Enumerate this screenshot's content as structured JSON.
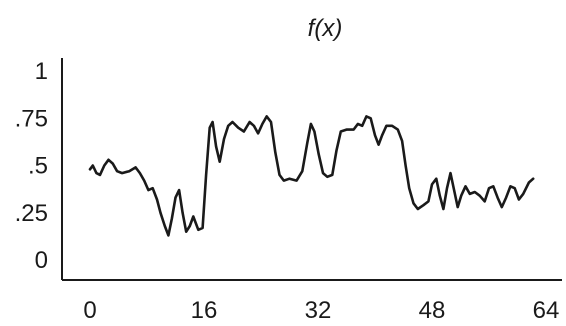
{
  "chart_data": {
    "type": "line",
    "title": "f(x)",
    "xlabel": "",
    "ylabel": "",
    "xlim": [
      -5,
      65
    ],
    "ylim": [
      0,
      1
    ],
    "grid": false,
    "legend": "none",
    "x_ticks": [
      {
        "value": 0,
        "label": "0"
      },
      {
        "value": 16,
        "label": "16"
      },
      {
        "value": 32,
        "label": "32"
      },
      {
        "value": 48,
        "label": "48"
      },
      {
        "value": 64,
        "label": "64"
      }
    ],
    "y_ticks": [
      {
        "value": 0,
        "label": "0"
      },
      {
        "value": 0.25,
        "label": ".25"
      },
      {
        "value": 0.5,
        "label": ".5"
      },
      {
        "value": 0.75,
        "label": ".75"
      },
      {
        "value": 1,
        "label": "1"
      }
    ],
    "series": [
      {
        "values": [
          [
            0,
            0.48
          ],
          [
            0.4,
            0.5
          ],
          [
            0.9,
            0.46
          ],
          [
            1.4,
            0.45
          ],
          [
            2,
            0.5
          ],
          [
            2.6,
            0.53
          ],
          [
            3.2,
            0.51
          ],
          [
            3.8,
            0.47
          ],
          [
            4.5,
            0.46
          ],
          [
            5.5,
            0.47
          ],
          [
            6.4,
            0.49
          ],
          [
            7,
            0.46
          ],
          [
            7.6,
            0.42
          ],
          [
            8.2,
            0.37
          ],
          [
            8.8,
            0.38
          ],
          [
            9.4,
            0.32
          ],
          [
            9.9,
            0.25
          ],
          [
            10.5,
            0.18
          ],
          [
            11,
            0.13
          ],
          [
            11.5,
            0.22
          ],
          [
            12,
            0.33
          ],
          [
            12.5,
            0.37
          ],
          [
            13,
            0.25
          ],
          [
            13.5,
            0.15
          ],
          [
            14,
            0.18
          ],
          [
            14.5,
            0.23
          ],
          [
            15.2,
            0.16
          ],
          [
            15.8,
            0.17
          ],
          [
            16.3,
            0.45
          ],
          [
            16.8,
            0.7
          ],
          [
            17.2,
            0.73
          ],
          [
            17.7,
            0.6
          ],
          [
            18.2,
            0.52
          ],
          [
            18.8,
            0.64
          ],
          [
            19.4,
            0.71
          ],
          [
            20,
            0.73
          ],
          [
            20.8,
            0.7
          ],
          [
            21.6,
            0.68
          ],
          [
            22.4,
            0.73
          ],
          [
            23,
            0.71
          ],
          [
            23.6,
            0.67
          ],
          [
            24.2,
            0.72
          ],
          [
            24.8,
            0.76
          ],
          [
            25.4,
            0.73
          ],
          [
            26,
            0.57
          ],
          [
            26.6,
            0.45
          ],
          [
            27.2,
            0.42
          ],
          [
            28,
            0.43
          ],
          [
            29,
            0.42
          ],
          [
            29.8,
            0.47
          ],
          [
            30.5,
            0.62
          ],
          [
            31,
            0.72
          ],
          [
            31.5,
            0.68
          ],
          [
            32.1,
            0.56
          ],
          [
            32.7,
            0.46
          ],
          [
            33.3,
            0.44
          ],
          [
            34,
            0.45
          ],
          [
            34.6,
            0.58
          ],
          [
            35.2,
            0.68
          ],
          [
            36,
            0.69
          ],
          [
            37,
            0.69
          ],
          [
            37.6,
            0.72
          ],
          [
            38.2,
            0.71
          ],
          [
            38.8,
            0.76
          ],
          [
            39.4,
            0.75
          ],
          [
            40,
            0.66
          ],
          [
            40.5,
            0.61
          ],
          [
            41,
            0.66
          ],
          [
            41.6,
            0.71
          ],
          [
            42.4,
            0.71
          ],
          [
            43.2,
            0.69
          ],
          [
            43.8,
            0.63
          ],
          [
            44.3,
            0.5
          ],
          [
            44.8,
            0.38
          ],
          [
            45.4,
            0.3
          ],
          [
            46,
            0.27
          ],
          [
            46.8,
            0.29
          ],
          [
            47.5,
            0.31
          ],
          [
            48,
            0.4
          ],
          [
            48.6,
            0.43
          ],
          [
            49.1,
            0.34
          ],
          [
            49.6,
            0.27
          ],
          [
            50.1,
            0.38
          ],
          [
            50.6,
            0.46
          ],
          [
            51.1,
            0.37
          ],
          [
            51.6,
            0.28
          ],
          [
            52.1,
            0.34
          ],
          [
            52.7,
            0.39
          ],
          [
            53.3,
            0.35
          ],
          [
            54,
            0.36
          ],
          [
            54.7,
            0.34
          ],
          [
            55.4,
            0.31
          ],
          [
            56,
            0.38
          ],
          [
            56.6,
            0.39
          ],
          [
            57.2,
            0.33
          ],
          [
            57.8,
            0.28
          ],
          [
            58.4,
            0.33
          ],
          [
            59,
            0.39
          ],
          [
            59.6,
            0.38
          ],
          [
            60.2,
            0.32
          ],
          [
            60.8,
            0.35
          ],
          [
            61.6,
            0.41
          ],
          [
            62.2,
            0.43
          ]
        ]
      }
    ]
  }
}
